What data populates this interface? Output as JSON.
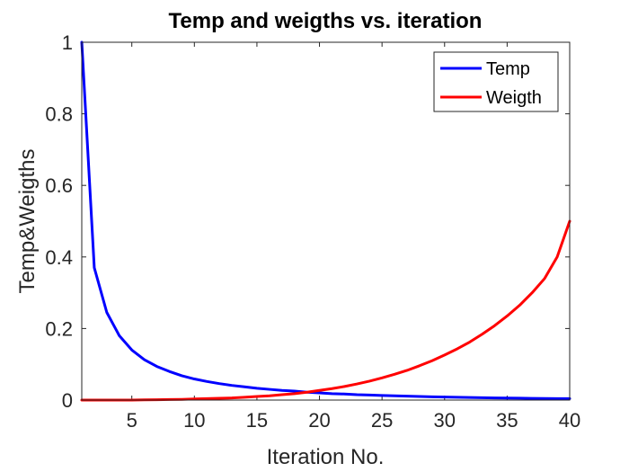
{
  "chart_data": {
    "type": "line",
    "title": "Temp and weigths vs. iteration",
    "xlabel": "Iteration No.",
    "ylabel": "Temp&Weigths",
    "xlim": [
      1,
      40
    ],
    "ylim": [
      0,
      1
    ],
    "xticks": [
      "5",
      "10",
      "15",
      "20",
      "25",
      "30",
      "35",
      "40"
    ],
    "yticks": [
      "0",
      "0.2",
      "0.4",
      "0.6",
      "0.8",
      "1"
    ],
    "grid": false,
    "legend_position": "top-right",
    "x": [
      1,
      2,
      3,
      4,
      5,
      6,
      7,
      8,
      9,
      10,
      11,
      12,
      13,
      14,
      15,
      16,
      17,
      18,
      19,
      20,
      21,
      22,
      23,
      24,
      25,
      26,
      27,
      28,
      29,
      30,
      31,
      32,
      33,
      34,
      35,
      36,
      37,
      38,
      39,
      40
    ],
    "series": [
      {
        "name": "Temp",
        "color": "#0000ff",
        "values": [
          1,
          0.37,
          0.245,
          0.18,
          0.14,
          0.113,
          0.094,
          0.08,
          0.068,
          0.059,
          0.052,
          0.046,
          0.041,
          0.037,
          0.033,
          0.03,
          0.027,
          0.025,
          0.022,
          0.02,
          0.018,
          0.017,
          0.015,
          0.014,
          0.013,
          0.012,
          0.011,
          0.01,
          0.009,
          0.0085,
          0.0078,
          0.0072,
          0.0066,
          0.0061,
          0.0056,
          0.0052,
          0.0048,
          0.0045,
          0.0042,
          0.004
        ]
      },
      {
        "name": "Weigth",
        "color": "#ff0000",
        "values": [
          0,
          0,
          0,
          0,
          0,
          0.0005,
          0.001,
          0.0015,
          0.002,
          0.003,
          0.004,
          0.005,
          0.006,
          0.008,
          0.01,
          0.012,
          0.015,
          0.018,
          0.022,
          0.027,
          0.032,
          0.038,
          0.045,
          0.053,
          0.062,
          0.072,
          0.083,
          0.096,
          0.11,
          0.126,
          0.143,
          0.162,
          0.184,
          0.208,
          0.235,
          0.265,
          0.3,
          0.34,
          0.4,
          0.5
        ]
      }
    ]
  }
}
